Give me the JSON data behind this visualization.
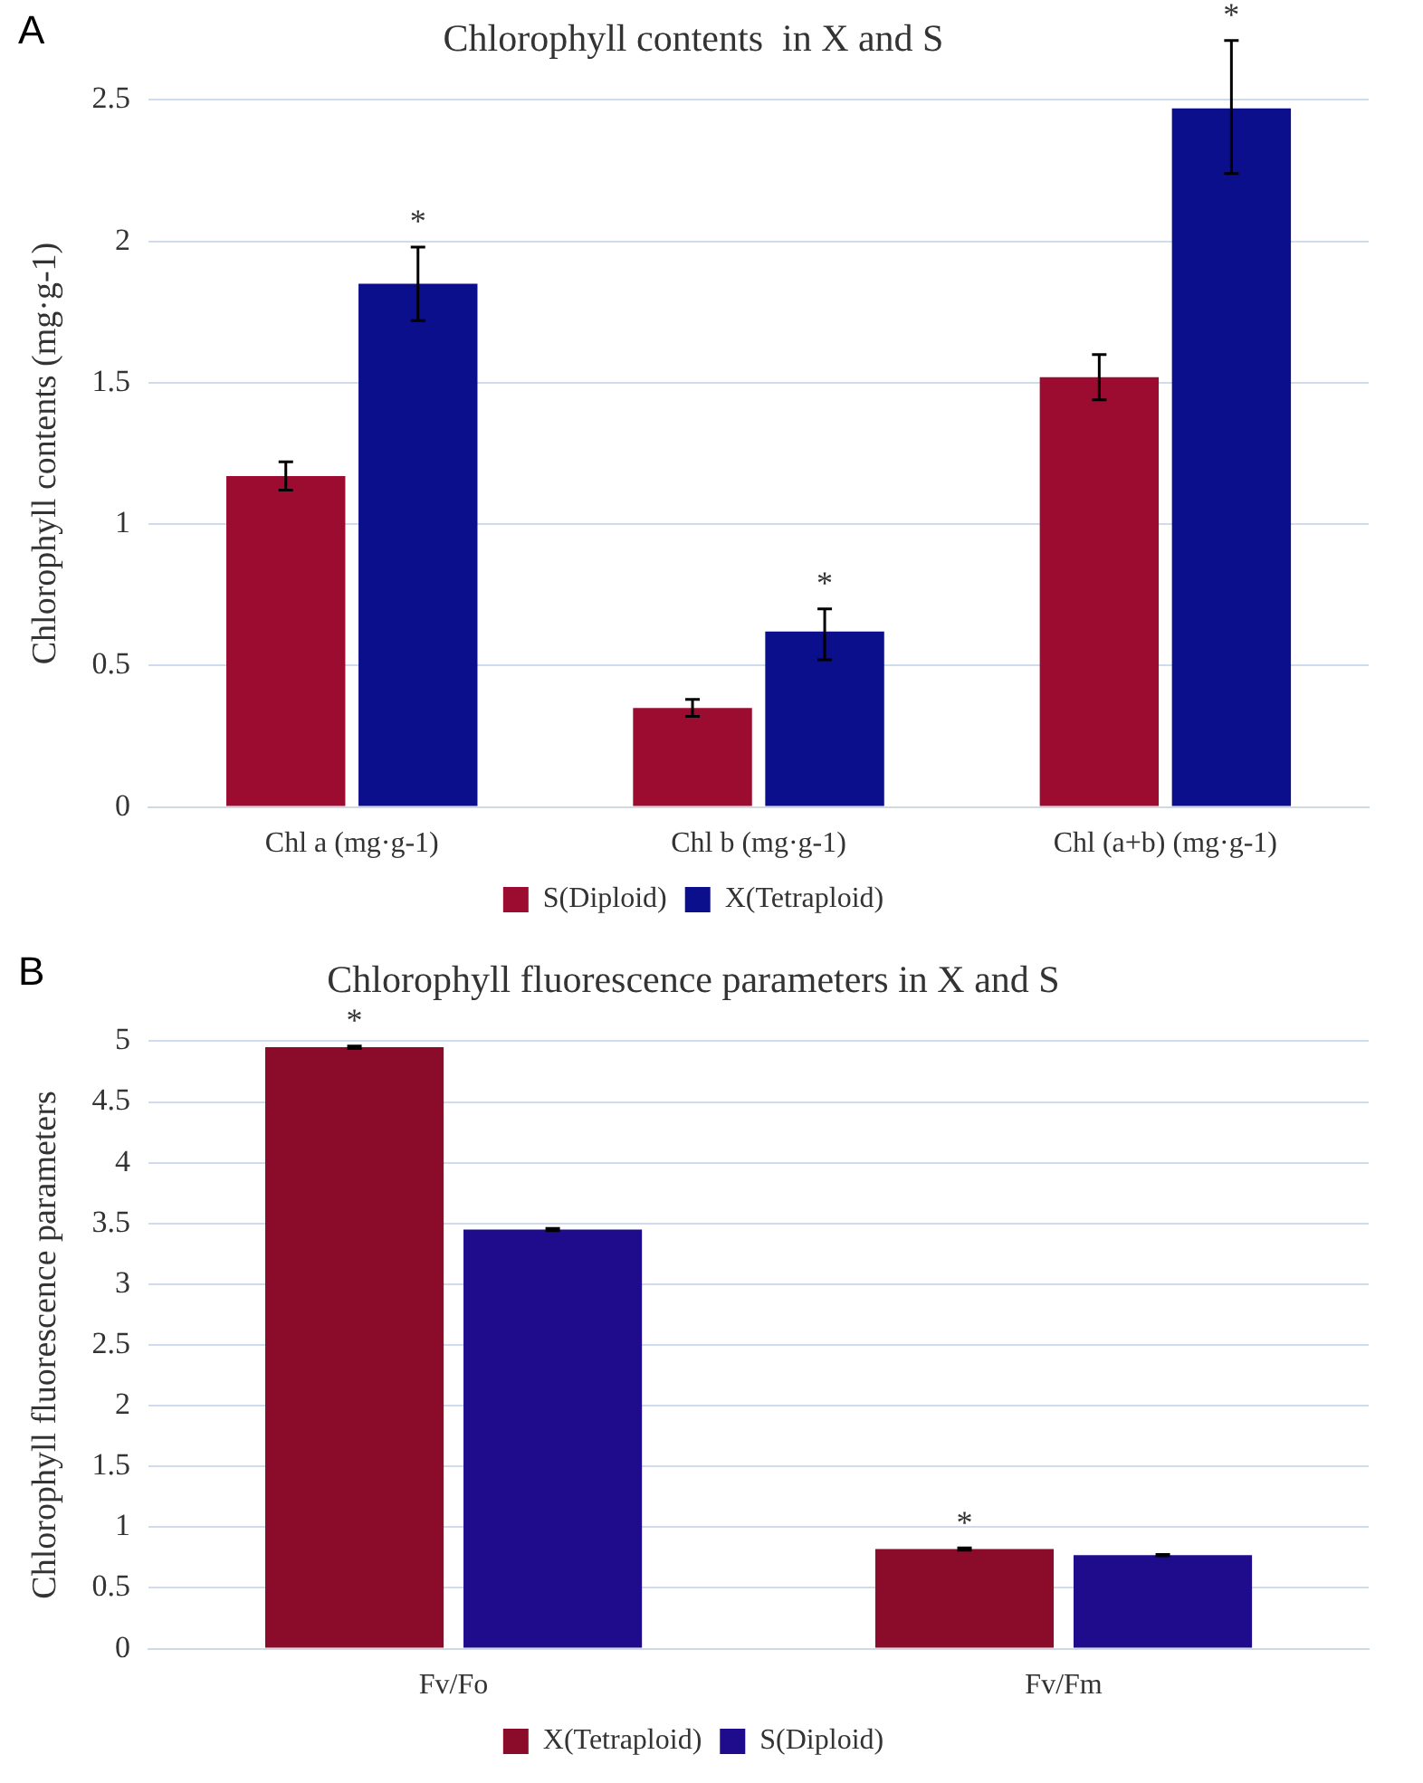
{
  "chart_data": [
    {
      "type": "bar",
      "title": "Chlorophyll contents  in X and S",
      "ylabel": "Chlorophyll contents (mg·g-1)",
      "annotations": [
        "A"
      ],
      "categories": [
        "Chl a (mg·g-1)",
        "Chl b (mg·g-1)",
        "Chl (a+b) (mg·g-1)"
      ],
      "series": [
        {
          "name": "S(Diploid)",
          "color": "#9b0c30",
          "values": [
            1.17,
            0.35,
            1.52
          ],
          "errors": [
            0.05,
            0.03,
            0.08
          ]
        },
        {
          "name": "X(Tetraploid)",
          "color": "#0c0f8c",
          "values": [
            1.85,
            0.62,
            2.47
          ],
          "errors": [
            [
              1.72,
              1.98
            ],
            [
              0.52,
              0.7
            ],
            [
              2.24,
              2.71
            ]
          ],
          "value_labels": [
            "*",
            "*",
            "*"
          ]
        }
      ],
      "ylim": [
        0,
        2.5
      ],
      "yticks": [
        0,
        0.5,
        1,
        1.5,
        2,
        2.5
      ],
      "grid": "y",
      "legend": "bottom"
    },
    {
      "type": "bar",
      "title": "Chlorophyll fluorescence parameters in X and S",
      "ylabel": "Chlorophyll fluorescence parameters",
      "annotations": [
        "B"
      ],
      "categories": [
        "Fv/Fo",
        "Fv/Fm"
      ],
      "series": [
        {
          "name": "X(Tetraploid)",
          "color": "#8b0c2a",
          "values": [
            4.95,
            0.82
          ],
          "errors": [
            0.01,
            0.01
          ],
          "value_labels": [
            "*",
            "*"
          ]
        },
        {
          "name": "S(Diploid)",
          "color": "#1e0c8c",
          "values": [
            3.45,
            0.77
          ],
          "errors": [
            0.01,
            0.005
          ]
        }
      ],
      "ylim": [
        0,
        5
      ],
      "yticks": [
        0,
        0.5,
        1,
        1.5,
        2,
        2.5,
        3,
        3.5,
        4,
        4.5,
        5
      ],
      "grid": "y",
      "legend": "bottom"
    }
  ]
}
